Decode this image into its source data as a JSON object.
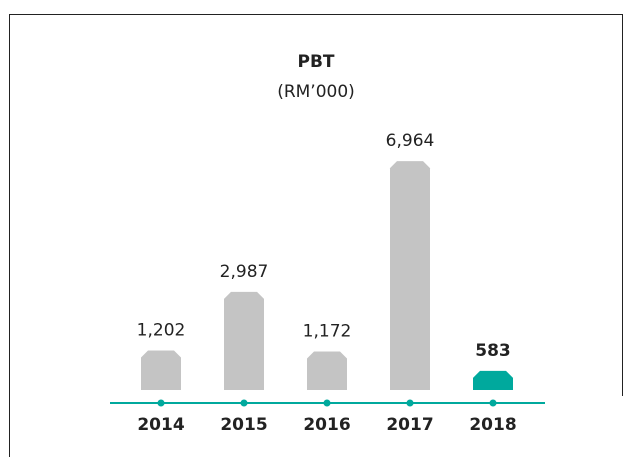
{
  "chart_data": {
    "type": "bar",
    "title": "PBT",
    "subtitle": "(RM’000)",
    "categories": [
      "2014",
      "2015",
      "2016",
      "2017",
      "2018"
    ],
    "values": [
      1202,
      2987,
      1172,
      6964,
      583
    ],
    "value_labels": [
      "1,202",
      "2,987",
      "1,172",
      "6,964",
      "583"
    ],
    "colors": [
      "#c4c4c4",
      "#c4c4c4",
      "#c4c4c4",
      "#c4c4c4",
      "#00a99d"
    ],
    "axis_color": "#00a99d"
  }
}
